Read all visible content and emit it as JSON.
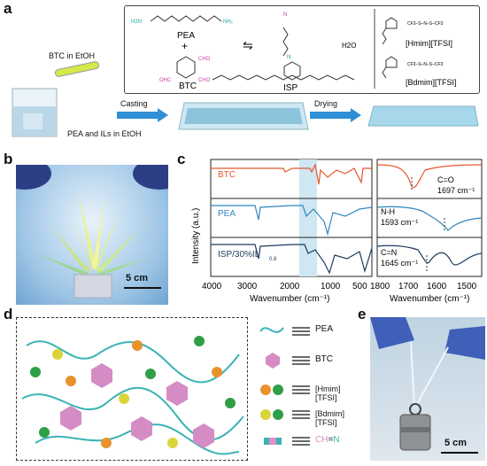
{
  "panel_labels": {
    "a": "a",
    "b": "b",
    "c": "c",
    "d": "d",
    "e": "e"
  },
  "panel_a": {
    "reaction": {
      "pea_label": "PEA",
      "btc_label": "BTC",
      "isp_label": "ISP",
      "water": "H2O",
      "plus": "+",
      "equilibrium": "⇋",
      "pea_end_group": "H2N",
      "btc_group": "CHO"
    },
    "ionic_liquids": {
      "hmim": "[Hmim][TFSI]",
      "bdmim": "[Bdmim][TFSI]",
      "anion": "CF3–S–N–S–CF3"
    },
    "process": {
      "btc_in_etoh": "BTC in EtOH",
      "pea_ils": "PEA and ILs in EtOH",
      "casting": "Casting",
      "drying": "Drying"
    }
  },
  "panel_b": {
    "scale": "5 cm"
  },
  "panel_c": {
    "ylabel": "Intensity (a.u.)",
    "xlabel": "Wavenumber (cm⁻¹)",
    "left_series": [
      {
        "name": "BTC",
        "color": "#e4572e"
      },
      {
        "name": "PEA",
        "color": "#2e86c1"
      },
      {
        "name": "ISP/30%IL",
        "sub": "0.8",
        "color": "#1b3a5c"
      }
    ],
    "left_ticks": [
      "4000",
      "3000",
      "2000",
      "1000",
      "500"
    ],
    "right_ticks": [
      "1800",
      "1700",
      "1600",
      "1500"
    ],
    "annotations": [
      {
        "label": "C=O",
        "value": "1697 cm⁻¹"
      },
      {
        "label": "N-H",
        "value": "1593 cm⁻¹"
      },
      {
        "label": "C=N",
        "value": "1645 cm⁻¹"
      }
    ],
    "highlight_color": "#cfe6f3"
  },
  "panel_d": {
    "legend": [
      {
        "label": "PEA"
      },
      {
        "label": "BTC"
      },
      {
        "label": "[Hmim][TFSI]"
      },
      {
        "label": "[Bdmim][TFSI]"
      },
      {
        "label_ch": "CH",
        "label_eq": "=",
        "label_n": "N"
      }
    ],
    "colors": {
      "chain": "#3bb3b5",
      "btc": "#d58cc4",
      "hmim": "#e8922e",
      "tfsi": "#2e9e47",
      "bdmim": "#d9d43a"
    }
  },
  "panel_e": {
    "scale": "5 cm"
  }
}
